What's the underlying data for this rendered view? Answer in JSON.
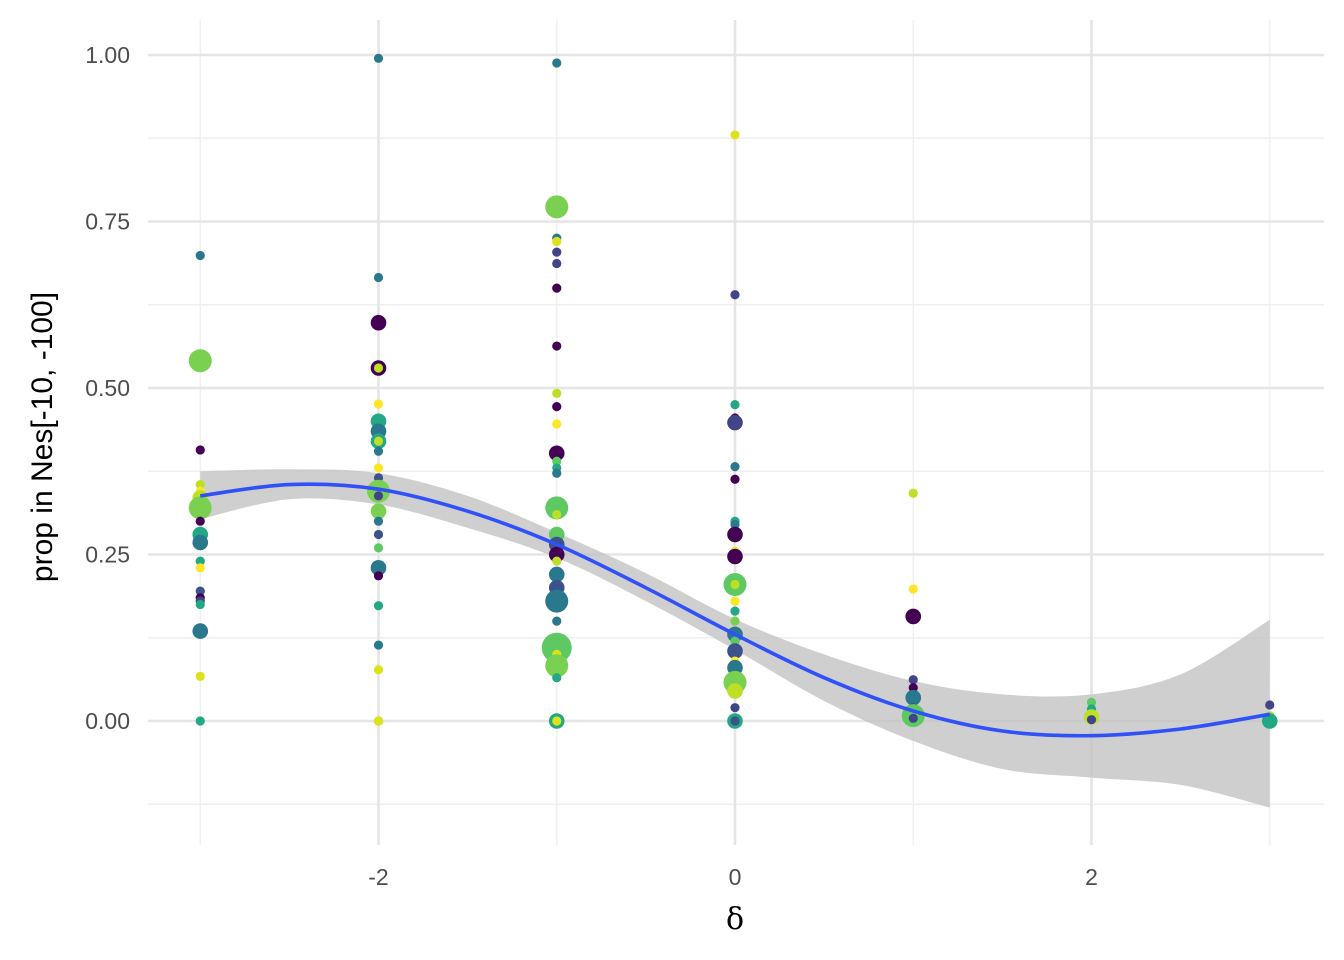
{
  "chart_data": {
    "type": "scatter",
    "title": "",
    "xlabel": "δ",
    "ylabel": "prop in Nes[-10, -100]",
    "xlim": [
      -3.3,
      3.3
    ],
    "ylim": [
      -0.185,
      1.05
    ],
    "x_ticks": [
      -2,
      0,
      2
    ],
    "x_tick_labels": [
      "-2",
      "0",
      "2"
    ],
    "x_minor_ticks": [
      -3,
      -1,
      1,
      3
    ],
    "y_ticks": [
      0,
      0.25,
      0.5,
      0.75,
      1.0
    ],
    "y_tick_labels": [
      "0.00",
      "0.25",
      "0.50",
      "0.75",
      "1.00"
    ],
    "y_minor_ticks": [
      -0.125,
      0.125,
      0.375,
      0.625,
      0.875
    ],
    "grid": true,
    "legend": "none",
    "colors": {
      "grid_major": "#e5e5e5",
      "grid_minor": "#efefef",
      "smooth_line": "#3050f8",
      "confidence_band": "#c2c2c2"
    },
    "points": [
      {
        "x": -3,
        "y": 0.699,
        "s": 1,
        "c": "#2a788e"
      },
      {
        "x": -3,
        "y": 0.541,
        "s": 3,
        "c": "#7ad151"
      },
      {
        "x": -3,
        "y": 0.407,
        "s": 1,
        "c": "#440154"
      },
      {
        "x": -3,
        "y": 0.355,
        "s": 1,
        "c": "#bddf26"
      },
      {
        "x": -3,
        "y": 0.345,
        "s": 1,
        "c": "#fde725"
      },
      {
        "x": -3,
        "y": 0.335,
        "s": 2,
        "c": "#bddf26"
      },
      {
        "x": -3,
        "y": 0.32,
        "s": 3,
        "c": "#7ad151"
      },
      {
        "x": -3,
        "y": 0.3,
        "s": 1,
        "c": "#440154"
      },
      {
        "x": -3,
        "y": 0.28,
        "s": 2,
        "c": "#22a884"
      },
      {
        "x": -3,
        "y": 0.268,
        "s": 2,
        "c": "#2a788e"
      },
      {
        "x": -3,
        "y": 0.24,
        "s": 1,
        "c": "#22a884"
      },
      {
        "x": -3,
        "y": 0.23,
        "s": 1,
        "c": "#fde725"
      },
      {
        "x": -3,
        "y": 0.195,
        "s": 1,
        "c": "#3b528b"
      },
      {
        "x": -3,
        "y": 0.185,
        "s": 1,
        "c": "#440154"
      },
      {
        "x": -3,
        "y": 0.18,
        "s": 1,
        "c": "#414487"
      },
      {
        "x": -3,
        "y": 0.175,
        "s": 1,
        "c": "#22a884"
      },
      {
        "x": -3,
        "y": 0.135,
        "s": 2,
        "c": "#2a788e"
      },
      {
        "x": -3,
        "y": 0.067,
        "s": 1,
        "c": "#dde318"
      },
      {
        "x": -3,
        "y": 0.0,
        "s": 1,
        "c": "#22a884"
      },
      {
        "x": -2,
        "y": 0.995,
        "s": 1,
        "c": "#2a788e"
      },
      {
        "x": -2,
        "y": 0.666,
        "s": 1,
        "c": "#2a788e"
      },
      {
        "x": -2,
        "y": 0.598,
        "s": 2,
        "c": "#440154"
      },
      {
        "x": -2,
        "y": 0.53,
        "s": 2,
        "c": "#440154"
      },
      {
        "x": -2,
        "y": 0.53,
        "s": 1,
        "c": "#bddf26"
      },
      {
        "x": -2,
        "y": 0.476,
        "s": 1,
        "c": "#fde725"
      },
      {
        "x": -2,
        "y": 0.45,
        "s": 2,
        "c": "#22a884"
      },
      {
        "x": -2,
        "y": 0.435,
        "s": 2,
        "c": "#2a788e"
      },
      {
        "x": -2,
        "y": 0.42,
        "s": 2,
        "c": "#22a884"
      },
      {
        "x": -2,
        "y": 0.42,
        "s": 1,
        "c": "#bddf26"
      },
      {
        "x": -2,
        "y": 0.405,
        "s": 1,
        "c": "#2a788e"
      },
      {
        "x": -2,
        "y": 0.38,
        "s": 1,
        "c": "#fde725"
      },
      {
        "x": -2,
        "y": 0.365,
        "s": 1,
        "c": "#3b528b"
      },
      {
        "x": -2,
        "y": 0.345,
        "s": 3,
        "c": "#7ad151"
      },
      {
        "x": -2,
        "y": 0.338,
        "s": 1,
        "c": "#414487"
      },
      {
        "x": -2,
        "y": 0.315,
        "s": 2,
        "c": "#7ad151"
      },
      {
        "x": -2,
        "y": 0.3,
        "s": 1,
        "c": "#2a788e"
      },
      {
        "x": -2,
        "y": 0.28,
        "s": 1,
        "c": "#3b528b"
      },
      {
        "x": -2,
        "y": 0.26,
        "s": 1,
        "c": "#5ec962"
      },
      {
        "x": -2,
        "y": 0.23,
        "s": 2,
        "c": "#2a788e"
      },
      {
        "x": -2,
        "y": 0.218,
        "s": 1,
        "c": "#440154"
      },
      {
        "x": -2,
        "y": 0.173,
        "s": 1,
        "c": "#22a884"
      },
      {
        "x": -2,
        "y": 0.114,
        "s": 1,
        "c": "#2a788e"
      },
      {
        "x": -2,
        "y": 0.077,
        "s": 1,
        "c": "#dde318"
      },
      {
        "x": -2,
        "y": 0.0,
        "s": 1,
        "c": "#22a884"
      },
      {
        "x": -2,
        "y": 0.0,
        "s": 1,
        "c": "#dde318"
      },
      {
        "x": -1,
        "y": 0.988,
        "s": 1,
        "c": "#2a788e"
      },
      {
        "x": -1,
        "y": 0.772,
        "s": 3,
        "c": "#7ad151"
      },
      {
        "x": -1,
        "y": 0.725,
        "s": 1,
        "c": "#2a788e"
      },
      {
        "x": -1,
        "y": 0.72,
        "s": 1,
        "c": "#dde318"
      },
      {
        "x": -1,
        "y": 0.704,
        "s": 1,
        "c": "#414487"
      },
      {
        "x": -1,
        "y": 0.687,
        "s": 1,
        "c": "#414487"
      },
      {
        "x": -1,
        "y": 0.65,
        "s": 1,
        "c": "#440154"
      },
      {
        "x": -1,
        "y": 0.563,
        "s": 1,
        "c": "#440154"
      },
      {
        "x": -1,
        "y": 0.492,
        "s": 1,
        "c": "#bddf26"
      },
      {
        "x": -1,
        "y": 0.472,
        "s": 1,
        "c": "#440154"
      },
      {
        "x": -1,
        "y": 0.446,
        "s": 1,
        "c": "#fde725"
      },
      {
        "x": -1,
        "y": 0.402,
        "s": 2,
        "c": "#440154"
      },
      {
        "x": -1,
        "y": 0.39,
        "s": 1,
        "c": "#5ec962"
      },
      {
        "x": -1,
        "y": 0.38,
        "s": 1,
        "c": "#22a884"
      },
      {
        "x": -1,
        "y": 0.372,
        "s": 1,
        "c": "#2a788e"
      },
      {
        "x": -1,
        "y": 0.32,
        "s": 3,
        "c": "#5ec962"
      },
      {
        "x": -1,
        "y": 0.31,
        "s": 1,
        "c": "#bddf26"
      },
      {
        "x": -1,
        "y": 0.28,
        "s": 2,
        "c": "#5ec962"
      },
      {
        "x": -1,
        "y": 0.265,
        "s": 2,
        "c": "#3b528b"
      },
      {
        "x": -1,
        "y": 0.25,
        "s": 2,
        "c": "#440154"
      },
      {
        "x": -1,
        "y": 0.24,
        "s": 1,
        "c": "#bddf26"
      },
      {
        "x": -1,
        "y": 0.22,
        "s": 2,
        "c": "#2a788e"
      },
      {
        "x": -1,
        "y": 0.2,
        "s": 2,
        "c": "#3b528b"
      },
      {
        "x": -1,
        "y": 0.18,
        "s": 3,
        "c": "#2a788e"
      },
      {
        "x": -1,
        "y": 0.15,
        "s": 1,
        "c": "#2a788e"
      },
      {
        "x": -1,
        "y": 0.11,
        "s": 4,
        "c": "#5ec962"
      },
      {
        "x": -1,
        "y": 0.1,
        "s": 1,
        "c": "#dde318"
      },
      {
        "x": -1,
        "y": 0.083,
        "s": 3,
        "c": "#7ad151"
      },
      {
        "x": -1,
        "y": 0.065,
        "s": 1,
        "c": "#22a884"
      },
      {
        "x": -1,
        "y": 0.0,
        "s": 2,
        "c": "#22a884"
      },
      {
        "x": -1,
        "y": 0.0,
        "s": 1,
        "c": "#dde318"
      },
      {
        "x": 0,
        "y": 0.88,
        "s": 1,
        "c": "#dde318"
      },
      {
        "x": 0,
        "y": 0.64,
        "s": 1,
        "c": "#414487"
      },
      {
        "x": 0,
        "y": 0.475,
        "s": 1,
        "c": "#22a884"
      },
      {
        "x": 0,
        "y": 0.455,
        "s": 1,
        "c": "#440154"
      },
      {
        "x": 0,
        "y": 0.448,
        "s": 2,
        "c": "#414487"
      },
      {
        "x": 0,
        "y": 0.382,
        "s": 1,
        "c": "#2a788e"
      },
      {
        "x": 0,
        "y": 0.363,
        "s": 1,
        "c": "#440154"
      },
      {
        "x": 0,
        "y": 0.3,
        "s": 1,
        "c": "#22a884"
      },
      {
        "x": 0,
        "y": 0.295,
        "s": 1,
        "c": "#2a788e"
      },
      {
        "x": 0,
        "y": 0.28,
        "s": 2,
        "c": "#440154"
      },
      {
        "x": 0,
        "y": 0.255,
        "s": 1,
        "c": "#fde725"
      },
      {
        "x": 0,
        "y": 0.247,
        "s": 2,
        "c": "#440154"
      },
      {
        "x": 0,
        "y": 0.205,
        "s": 3,
        "c": "#5ec962"
      },
      {
        "x": 0,
        "y": 0.205,
        "s": 1,
        "c": "#bddf26"
      },
      {
        "x": 0,
        "y": 0.18,
        "s": 1,
        "c": "#fde725"
      },
      {
        "x": 0,
        "y": 0.165,
        "s": 1,
        "c": "#22a884"
      },
      {
        "x": 0,
        "y": 0.15,
        "s": 1,
        "c": "#7ad151"
      },
      {
        "x": 0,
        "y": 0.13,
        "s": 2,
        "c": "#2a788e"
      },
      {
        "x": 0,
        "y": 0.12,
        "s": 1,
        "c": "#5ec962"
      },
      {
        "x": 0,
        "y": 0.105,
        "s": 2,
        "c": "#3b528b"
      },
      {
        "x": 0,
        "y": 0.09,
        "s": 1,
        "c": "#fde725"
      },
      {
        "x": 0,
        "y": 0.08,
        "s": 2,
        "c": "#2a788e"
      },
      {
        "x": 0,
        "y": 0.058,
        "s": 3,
        "c": "#7ad151"
      },
      {
        "x": 0,
        "y": 0.045,
        "s": 2,
        "c": "#bddf26"
      },
      {
        "x": 0,
        "y": 0.02,
        "s": 1,
        "c": "#414487"
      },
      {
        "x": 0,
        "y": 0.0,
        "s": 2,
        "c": "#22a884"
      },
      {
        "x": 0,
        "y": 0.0,
        "s": 1,
        "c": "#3b528b"
      },
      {
        "x": 1,
        "y": 0.342,
        "s": 1,
        "c": "#bddf26"
      },
      {
        "x": 1,
        "y": 0.198,
        "s": 1,
        "c": "#fde725"
      },
      {
        "x": 1,
        "y": 0.157,
        "s": 2,
        "c": "#440154"
      },
      {
        "x": 1,
        "y": 0.062,
        "s": 1,
        "c": "#414487"
      },
      {
        "x": 1,
        "y": 0.05,
        "s": 1,
        "c": "#440154"
      },
      {
        "x": 1,
        "y": 0.035,
        "s": 2,
        "c": "#2a788e"
      },
      {
        "x": 1,
        "y": 0.02,
        "s": 1,
        "c": "#3b528b"
      },
      {
        "x": 1,
        "y": 0.008,
        "s": 3,
        "c": "#5ec962"
      },
      {
        "x": 1,
        "y": 0.004,
        "s": 1,
        "c": "#414487"
      },
      {
        "x": 2,
        "y": 0.028,
        "s": 1,
        "c": "#5ec962"
      },
      {
        "x": 2,
        "y": 0.018,
        "s": 1,
        "c": "#22a884"
      },
      {
        "x": 2,
        "y": 0.006,
        "s": 2,
        "c": "#bddf26"
      },
      {
        "x": 2,
        "y": 0.002,
        "s": 1,
        "c": "#414487"
      },
      {
        "x": 3,
        "y": 0.024,
        "s": 1,
        "c": "#414487"
      },
      {
        "x": 3,
        "y": 0.008,
        "s": 1,
        "c": "#bddf26"
      },
      {
        "x": 3,
        "y": 0.0,
        "s": 2,
        "c": "#22a884"
      }
    ],
    "smooth": {
      "x": [
        -3,
        -2.5,
        -2,
        -1.5,
        -1,
        -0.5,
        0,
        0.5,
        1,
        1.5,
        2,
        2.5,
        3
      ],
      "y": [
        0.338,
        0.355,
        0.348,
        0.315,
        0.265,
        0.2,
        0.13,
        0.065,
        0.015,
        -0.015,
        -0.022,
        -0.012,
        0.01
      ],
      "upper": [
        0.375,
        0.378,
        0.372,
        0.338,
        0.283,
        0.222,
        0.153,
        0.1,
        0.06,
        0.04,
        0.04,
        0.07,
        0.152
      ],
      "lower": [
        0.303,
        0.333,
        0.325,
        0.29,
        0.245,
        0.18,
        0.107,
        0.03,
        -0.03,
        -0.072,
        -0.085,
        -0.096,
        -0.13
      ]
    }
  }
}
